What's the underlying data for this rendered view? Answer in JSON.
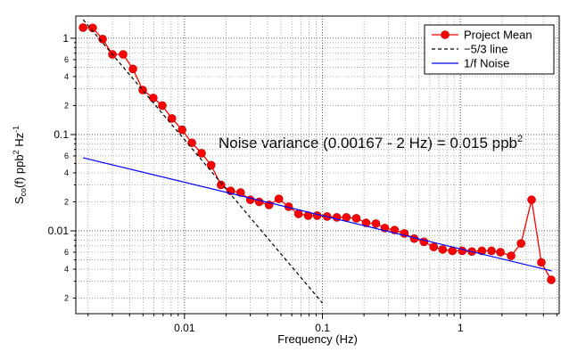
{
  "chart_data": {
    "type": "line",
    "xlabel": "Frequency (Hz)",
    "ylabel": {
      "main": "S",
      "sub": "co",
      "mid": "(f)  ppb",
      "sup1": "2",
      "unit": " Hz",
      "sup2": "-1"
    },
    "annotation": {
      "text": "Noise variance (0.00167 - 2 Hz) = 0.015 ppb",
      "sup": "2"
    },
    "log_x": true,
    "log_y": true,
    "grid": true,
    "legend": "upper right",
    "xlim": [
      0.00163,
      5.2
    ],
    "ylim": [
      0.00138,
      1.7
    ],
    "xticks": [
      0.01,
      0.1,
      1
    ],
    "xminor": [
      0.002,
      0.003,
      0.004,
      0.005,
      0.006,
      0.007,
      0.008,
      0.009,
      0.02,
      0.03,
      0.04,
      0.05,
      0.06,
      0.07,
      0.08,
      0.09,
      0.2,
      0.3,
      0.4,
      0.5,
      0.6,
      0.7,
      0.8,
      0.9,
      2,
      3,
      4,
      5
    ],
    "yticks": [
      {
        "value": 0.002,
        "label": "2"
      },
      {
        "value": 0.004,
        "label": "4"
      },
      {
        "value": 0.006,
        "label": "6"
      },
      0.01,
      {
        "value": 0.02,
        "label": "2"
      },
      {
        "value": 0.04,
        "label": "4"
      },
      {
        "value": 0.06,
        "label": "6"
      },
      0.1,
      {
        "value": 0.2,
        "label": "2"
      },
      {
        "value": 0.4,
        "label": "4"
      },
      {
        "value": 0.6,
        "label": "6"
      },
      1
    ],
    "yminor": [
      0.003,
      0.005,
      0.007,
      0.008,
      0.009,
      0.03,
      0.05,
      0.07,
      0.08,
      0.09,
      0.3,
      0.5,
      0.7,
      0.8,
      0.9
    ],
    "series": [
      {
        "name": "Project Mean",
        "color": "#ff0000",
        "markers": true,
        "x": [
          0.00184,
          0.00216,
          0.00255,
          0.003,
          0.00359,
          0.00423,
          0.00498,
          0.00594,
          0.0069,
          0.0081,
          0.0096,
          0.0113,
          0.0133,
          0.0156,
          0.0184,
          0.0216,
          0.0255,
          0.03,
          0.0348,
          0.041,
          0.0483,
          0.0569,
          0.067,
          0.0788,
          0.0915,
          0.108,
          0.127,
          0.149,
          0.176,
          0.207,
          0.244,
          0.283,
          0.333,
          0.392,
          0.462,
          0.544,
          0.64,
          0.743,
          0.875,
          1.03,
          1.21,
          1.43,
          1.68,
          1.95,
          2.33,
          2.75,
          3.28,
          3.86,
          4.55
        ],
        "values": [
          1.29,
          1.28,
          0.98,
          0.68,
          0.68,
          0.48,
          0.29,
          0.24,
          0.2,
          0.147,
          0.112,
          0.082,
          0.064,
          0.048,
          0.03,
          0.026,
          0.025,
          0.021,
          0.02,
          0.0186,
          0.0215,
          0.0178,
          0.015,
          0.0144,
          0.0144,
          0.0141,
          0.0138,
          0.0138,
          0.0135,
          0.0121,
          0.0119,
          0.0107,
          0.0102,
          0.0094,
          0.0083,
          0.0077,
          0.0068,
          0.0064,
          0.0062,
          0.0062,
          0.0061,
          0.0062,
          0.0062,
          0.006,
          0.0055,
          0.0074,
          0.021,
          0.0047,
          0.0031
        ]
      },
      {
        "name": "−5/3 line",
        "color": "#000000",
        "dashed": true,
        "x": [
          0.00184,
          0.1
        ],
        "values": [
          1.56,
          0.00178
        ]
      },
      {
        "name": "1/f Noise",
        "color": "#0000ff",
        "x": [
          0.00184,
          4.6
        ],
        "values": [
          0.0574,
          0.00383
        ]
      }
    ]
  }
}
